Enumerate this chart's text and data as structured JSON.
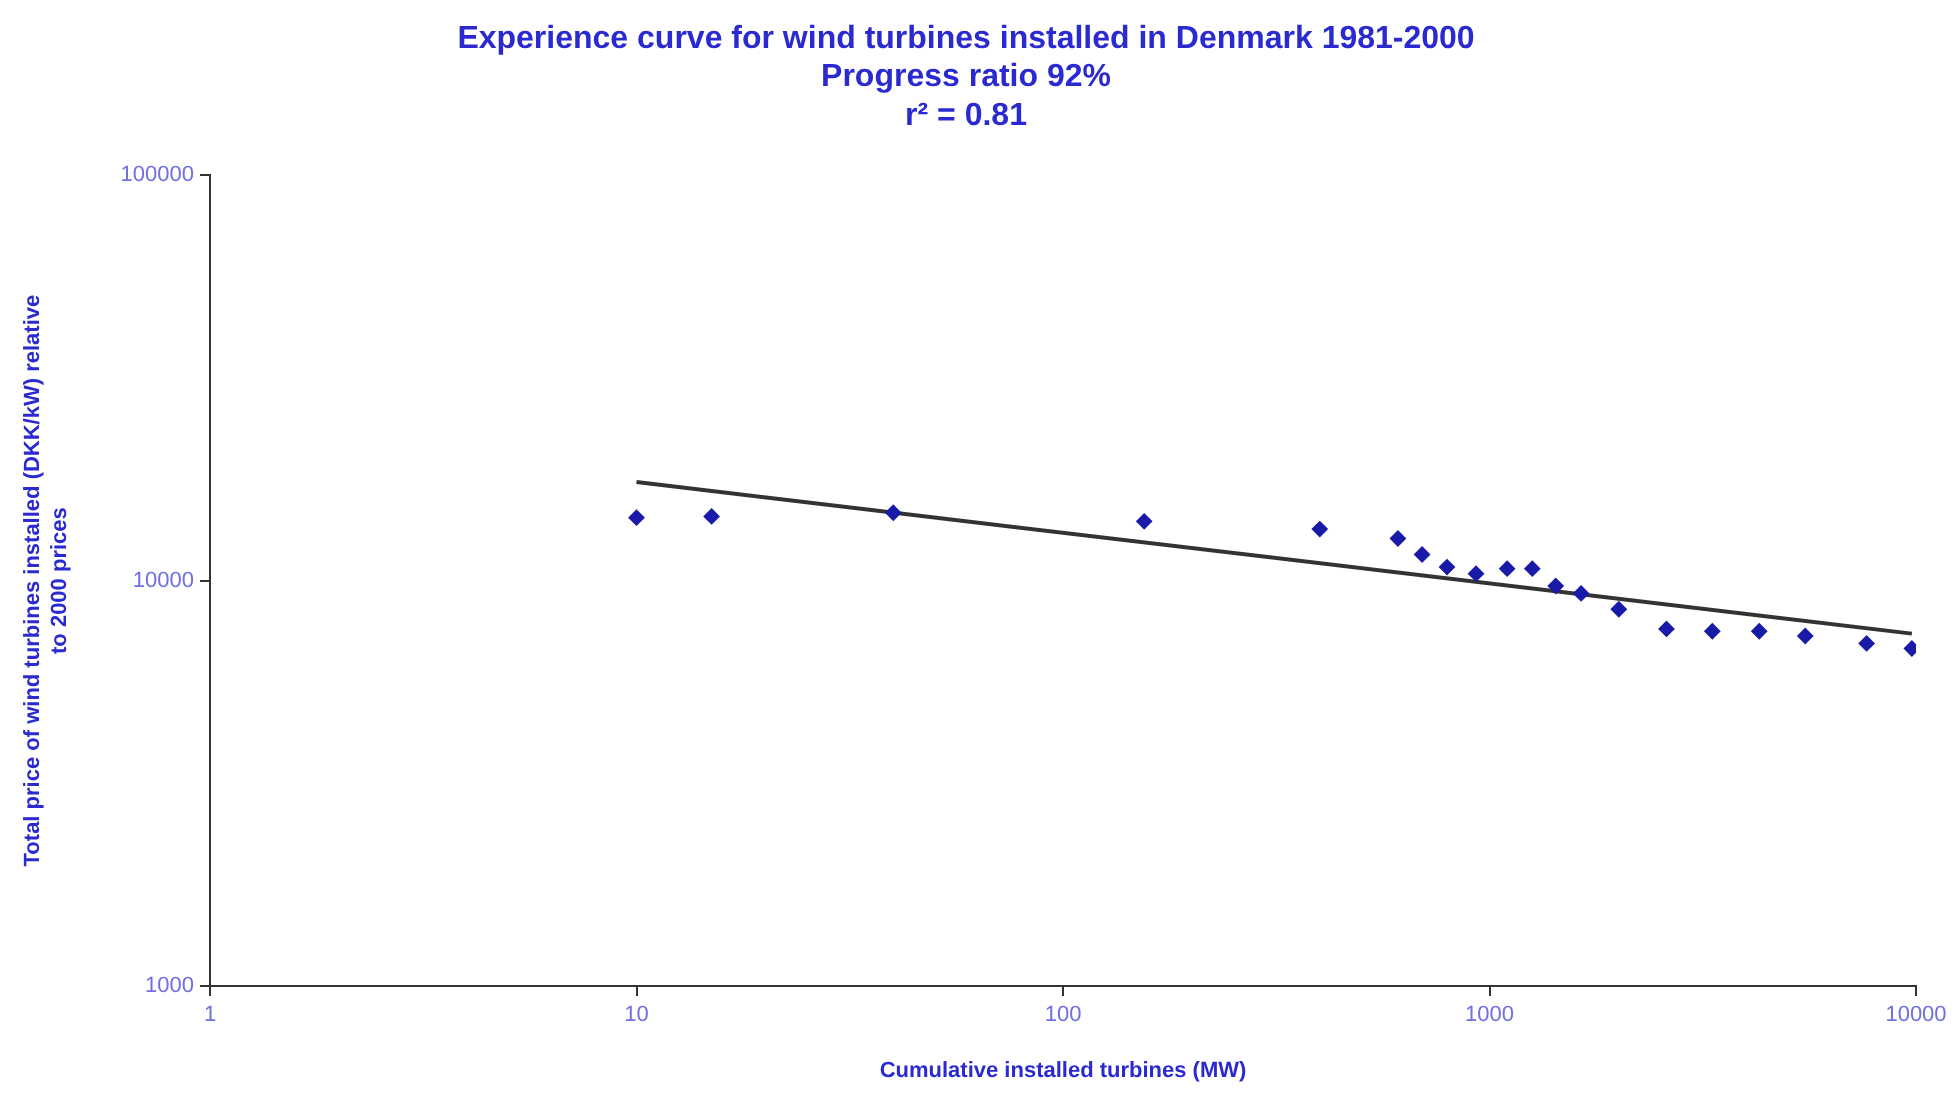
{
  "chart_data": {
    "type": "scatter",
    "title": "Experience curve for wind turbines installed in Denmark 1981-2000",
    "subtitle": "Progress ratio 92%\nr² = 0.81",
    "xlabel": "Cumulative installed turbines (MW)",
    "ylabel": "Total price of wind turbines installed (DKK/kW) relative to 2000 prices",
    "log": "xy",
    "xlim": [
      1,
      10000
    ],
    "xticks": [
      1,
      10,
      100,
      1000,
      10000
    ],
    "ylim": [
      1000,
      100000
    ],
    "yticks": [
      1000,
      10000,
      100000
    ],
    "grid": false,
    "legend": false,
    "marker": "diamond",
    "series": [
      {
        "color": "#1a1aa8",
        "x": [
          10,
          15,
          40,
          155,
          400,
          610,
          695,
          795,
          930,
          1100,
          1260,
          1430,
          1640,
          2010,
          2600,
          3330,
          4290,
          5500,
          7660,
          9780
        ],
        "values": [
          14300,
          14400,
          14700,
          14000,
          13400,
          12700,
          11600,
          10800,
          10400,
          10700,
          10700,
          9700,
          9300,
          8500,
          7600,
          7500,
          7500,
          7300,
          7000,
          6800
        ]
      },
      {
        "type": "line",
        "color": "#333333",
        "marker": "none",
        "line_style": "solid",
        "x": [
          10,
          9780
        ],
        "values": [
          17500,
          7400
        ]
      }
    ]
  }
}
